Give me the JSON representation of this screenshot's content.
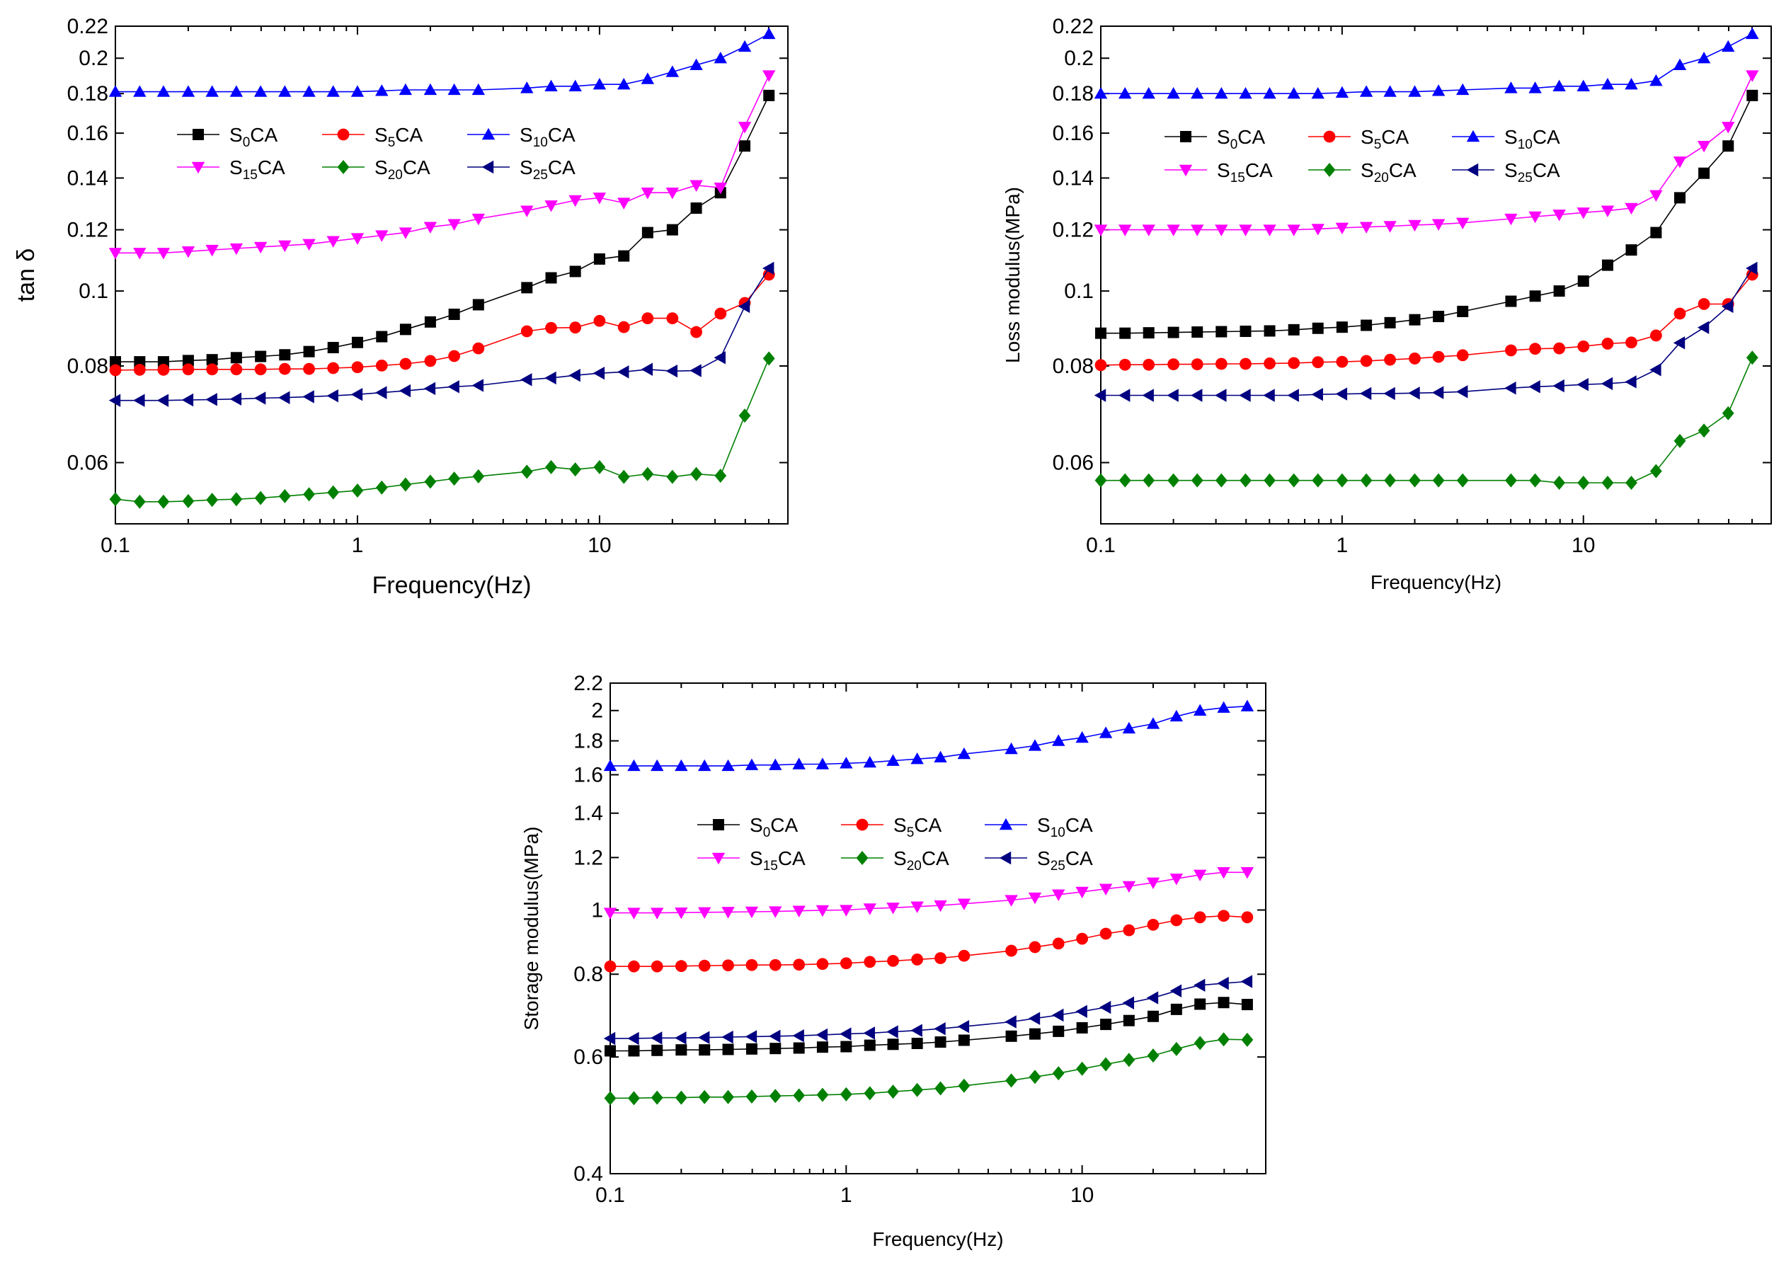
{
  "figure": {
    "series_styles": [
      {
        "name": "S0CA",
        "base": "S",
        "sub": "0",
        "suffix": "CA",
        "color": "#000000",
        "marker": "square"
      },
      {
        "name": "S5CA",
        "base": "S",
        "sub": "5",
        "suffix": "CA",
        "color": "#ff0000",
        "marker": "circle"
      },
      {
        "name": "S10CA",
        "base": "S",
        "sub": "10",
        "suffix": "CA",
        "color": "#0000ff",
        "marker": "triangle-up"
      },
      {
        "name": "S15CA",
        "base": "S",
        "sub": "15",
        "suffix": "CA",
        "color": "#ff00ff",
        "marker": "triangle-down"
      },
      {
        "name": "S20CA",
        "base": "S",
        "sub": "20",
        "suffix": "CA",
        "color": "#008000",
        "marker": "diamond"
      },
      {
        "name": "S25CA",
        "base": "S",
        "sub": "25",
        "suffix": "CA",
        "color": "#000080",
        "marker": "triangle-left"
      }
    ]
  },
  "chart_data": [
    {
      "type": "line",
      "title": "",
      "xlabel": "Frequency(Hz)",
      "ylabel": "tan δ",
      "xscale": "log",
      "yscale": "log",
      "xlim": [
        0.1,
        60
      ],
      "ylim": [
        0.05,
        0.22
      ],
      "xticks": [
        {
          "v": 0.1,
          "label": "0.1"
        },
        {
          "v": 1,
          "label": "1"
        },
        {
          "v": 10,
          "label": "10"
        }
      ],
      "yticks": [
        {
          "v": 0.06,
          "label": "0.06"
        },
        {
          "v": 0.08,
          "label": "0.08"
        },
        {
          "v": 0.1,
          "label": "0.1"
        },
        {
          "v": 0.12,
          "label": "0.12"
        },
        {
          "v": 0.14,
          "label": "0.14"
        },
        {
          "v": 0.16,
          "label": "0.16"
        },
        {
          "v": 0.18,
          "label": "0.18"
        },
        {
          "v": 0.2,
          "label": "0.2"
        },
        {
          "v": 0.22,
          "label": "0.22"
        }
      ],
      "legend": "upper-left",
      "grid": false,
      "x": [
        0.1,
        0.126,
        0.158,
        0.2,
        0.251,
        0.316,
        0.398,
        0.501,
        0.631,
        0.794,
        1.0,
        1.26,
        1.58,
        2.0,
        2.51,
        3.16,
        5.01,
        6.31,
        7.94,
        10.0,
        12.6,
        15.8,
        20.0,
        25.1,
        31.6,
        39.8,
        50.1
      ],
      "series": [
        {
          "name": "S0CA",
          "values": [
            0.081,
            0.081,
            0.081,
            0.0813,
            0.0815,
            0.082,
            0.0823,
            0.0827,
            0.0835,
            0.0845,
            0.0858,
            0.0873,
            0.0892,
            0.0912,
            0.0933,
            0.096,
            0.101,
            0.104,
            0.106,
            0.11,
            0.111,
            0.119,
            0.12,
            0.128,
            0.134,
            0.154,
            0.179
          ]
        },
        {
          "name": "S5CA",
          "values": [
            0.079,
            0.0791,
            0.0791,
            0.0792,
            0.0792,
            0.0792,
            0.0792,
            0.0793,
            0.0793,
            0.0795,
            0.0797,
            0.0801,
            0.0805,
            0.0812,
            0.0824,
            0.0843,
            0.0887,
            0.0896,
            0.0897,
            0.0915,
            0.0898,
            0.0922,
            0.0922,
            0.0885,
            0.0935,
            0.0965,
            0.105
          ]
        },
        {
          "name": "S10CA",
          "values": [
            0.181,
            0.181,
            0.181,
            0.181,
            0.181,
            0.181,
            0.181,
            0.181,
            0.181,
            0.181,
            0.181,
            0.1815,
            0.182,
            0.182,
            0.182,
            0.182,
            0.183,
            0.184,
            0.184,
            0.185,
            0.185,
            0.188,
            0.192,
            0.196,
            0.2,
            0.207,
            0.215
          ]
        },
        {
          "name": "S15CA",
          "values": [
            0.112,
            0.112,
            0.112,
            0.1125,
            0.113,
            0.1135,
            0.114,
            0.1145,
            0.115,
            0.116,
            0.117,
            0.118,
            0.119,
            0.121,
            0.122,
            0.124,
            0.127,
            0.129,
            0.131,
            0.132,
            0.13,
            0.134,
            0.134,
            0.137,
            0.136,
            0.163,
            0.19
          ]
        },
        {
          "name": "S20CA",
          "values": [
            0.0538,
            0.0534,
            0.0534,
            0.0535,
            0.0537,
            0.0538,
            0.054,
            0.0543,
            0.0546,
            0.0549,
            0.0552,
            0.0557,
            0.0562,
            0.0567,
            0.0572,
            0.0576,
            0.0584,
            0.0592,
            0.0588,
            0.0592,
            0.0575,
            0.058,
            0.0575,
            0.058,
            0.0577,
            0.069,
            0.0818
          ]
        },
        {
          "name": "S25CA",
          "values": [
            0.0722,
            0.0722,
            0.0722,
            0.0723,
            0.0724,
            0.0725,
            0.0727,
            0.0728,
            0.073,
            0.0732,
            0.0735,
            0.0739,
            0.0743,
            0.0748,
            0.0752,
            0.0755,
            0.0768,
            0.0772,
            0.0778,
            0.0783,
            0.0786,
            0.0792,
            0.0788,
            0.0789,
            0.082,
            0.0955,
            0.107
          ]
        }
      ]
    },
    {
      "type": "line",
      "title": "",
      "xlabel": "Frequency(Hz)",
      "ylabel": "Loss modulus(MPa)",
      "xscale": "log",
      "yscale": "log",
      "xlim": [
        0.1,
        60
      ],
      "ylim": [
        0.05,
        0.22
      ],
      "xticks": [
        {
          "v": 0.1,
          "label": "0.1"
        },
        {
          "v": 1,
          "label": "1"
        },
        {
          "v": 10,
          "label": "10"
        }
      ],
      "yticks": [
        {
          "v": 0.06,
          "label": "0.06"
        },
        {
          "v": 0.08,
          "label": "0.08"
        },
        {
          "v": 0.1,
          "label": "0.1"
        },
        {
          "v": 0.12,
          "label": "0.12"
        },
        {
          "v": 0.14,
          "label": "0.14"
        },
        {
          "v": 0.16,
          "label": "0.16"
        },
        {
          "v": 0.18,
          "label": "0.18"
        },
        {
          "v": 0.2,
          "label": "0.2"
        },
        {
          "v": 0.22,
          "label": "0.22"
        }
      ],
      "legend": "upper-left",
      "grid": false,
      "x": [
        0.1,
        0.126,
        0.158,
        0.2,
        0.251,
        0.316,
        0.398,
        0.501,
        0.631,
        0.794,
        1.0,
        1.26,
        1.58,
        2.0,
        2.51,
        3.16,
        5.01,
        6.31,
        7.94,
        10.0,
        12.6,
        15.8,
        20.0,
        25.1,
        31.6,
        39.8,
        50.1
      ],
      "series": [
        {
          "name": "S0CA",
          "values": [
            0.0882,
            0.0882,
            0.0883,
            0.0884,
            0.0885,
            0.0886,
            0.0887,
            0.0888,
            0.0891,
            0.0895,
            0.0898,
            0.0903,
            0.091,
            0.0918,
            0.0927,
            0.0941,
            0.097,
            0.0985,
            0.1,
            0.103,
            0.108,
            0.113,
            0.119,
            0.132,
            0.142,
            0.154,
            0.179
          ]
        },
        {
          "name": "S5CA",
          "values": [
            0.0802,
            0.0803,
            0.0803,
            0.0804,
            0.0804,
            0.0805,
            0.0805,
            0.0806,
            0.0807,
            0.0809,
            0.081,
            0.0812,
            0.0815,
            0.0818,
            0.0822,
            0.0826,
            0.0838,
            0.0842,
            0.0843,
            0.0848,
            0.0855,
            0.0858,
            0.0876,
            0.0935,
            0.0962,
            0.0962,
            0.105
          ]
        },
        {
          "name": "S10CA",
          "values": [
            0.18,
            0.18,
            0.18,
            0.18,
            0.18,
            0.18,
            0.18,
            0.18,
            0.18,
            0.18,
            0.1805,
            0.181,
            0.181,
            0.181,
            0.1815,
            0.182,
            0.183,
            0.183,
            0.184,
            0.184,
            0.185,
            0.185,
            0.187,
            0.196,
            0.2,
            0.207,
            0.215
          ]
        },
        {
          "name": "S15CA",
          "values": [
            0.12,
            0.12,
            0.12,
            0.12,
            0.12,
            0.12,
            0.12,
            0.12,
            0.12,
            0.1203,
            0.1207,
            0.121,
            0.1213,
            0.1217,
            0.122,
            0.1225,
            0.124,
            0.1248,
            0.1255,
            0.1263,
            0.127,
            0.128,
            0.133,
            0.147,
            0.154,
            0.163,
            0.19
          ]
        },
        {
          "name": "S20CA",
          "values": [
            0.0569,
            0.0569,
            0.0569,
            0.0569,
            0.0569,
            0.0569,
            0.0569,
            0.0569,
            0.0569,
            0.0569,
            0.0569,
            0.0569,
            0.0569,
            0.0569,
            0.0569,
            0.0569,
            0.0569,
            0.0569,
            0.0565,
            0.0565,
            0.0565,
            0.0565,
            0.0585,
            0.064,
            0.066,
            0.0695,
            0.082
          ]
        },
        {
          "name": "S25CA",
          "values": [
            0.0733,
            0.0733,
            0.0733,
            0.0733,
            0.0733,
            0.0733,
            0.0733,
            0.0733,
            0.0733,
            0.0735,
            0.0736,
            0.0737,
            0.0737,
            0.0738,
            0.0739,
            0.0741,
            0.0749,
            0.0752,
            0.0754,
            0.0757,
            0.0759,
            0.0763,
            0.0791,
            0.0857,
            0.0897,
            0.0955,
            0.107
          ]
        }
      ]
    },
    {
      "type": "line",
      "title": "",
      "xlabel": "Frequency(Hz)",
      "ylabel": "Storage modulus(MPa)",
      "xscale": "log",
      "yscale": "log",
      "xlim": [
        0.1,
        60
      ],
      "ylim": [
        0.4,
        2.2
      ],
      "xticks": [
        {
          "v": 0.1,
          "label": "0.1"
        },
        {
          "v": 1,
          "label": "1"
        },
        {
          "v": 10,
          "label": "10"
        }
      ],
      "yticks": [
        {
          "v": 0.4,
          "label": "0.4"
        },
        {
          "v": 0.6,
          "label": "0.6"
        },
        {
          "v": 0.8,
          "label": "0.8"
        },
        {
          "v": 1.0,
          "label": "1"
        },
        {
          "v": 1.2,
          "label": "1.2"
        },
        {
          "v": 1.4,
          "label": "1.4"
        },
        {
          "v": 1.6,
          "label": "1.6"
        },
        {
          "v": 1.8,
          "label": "1.8"
        },
        {
          "v": 2.0,
          "label": "2"
        },
        {
          "v": 2.2,
          "label": "2.2"
        }
      ],
      "legend": "upper-left",
      "grid": false,
      "x": [
        0.1,
        0.126,
        0.158,
        0.2,
        0.251,
        0.316,
        0.398,
        0.501,
        0.631,
        0.794,
        1.0,
        1.26,
        1.58,
        2.0,
        2.51,
        3.16,
        5.01,
        6.31,
        7.94,
        10.0,
        12.6,
        15.8,
        20.0,
        25.1,
        31.6,
        39.8,
        50.1
      ],
      "series": [
        {
          "name": "S0CA",
          "values": [
            0.613,
            0.613,
            0.614,
            0.615,
            0.615,
            0.616,
            0.617,
            0.618,
            0.619,
            0.621,
            0.622,
            0.625,
            0.627,
            0.629,
            0.632,
            0.636,
            0.645,
            0.65,
            0.656,
            0.664,
            0.672,
            0.681,
            0.691,
            0.708,
            0.721,
            0.725,
            0.72
          ]
        },
        {
          "name": "S5CA",
          "values": [
            0.822,
            0.822,
            0.822,
            0.823,
            0.824,
            0.825,
            0.826,
            0.826,
            0.827,
            0.829,
            0.831,
            0.835,
            0.838,
            0.842,
            0.846,
            0.853,
            0.868,
            0.879,
            0.89,
            0.905,
            0.921,
            0.932,
            0.95,
            0.965,
            0.975,
            0.98,
            0.975
          ]
        },
        {
          "name": "S10CA",
          "values": [
            1.65,
            1.65,
            1.65,
            1.65,
            1.65,
            1.65,
            1.655,
            1.655,
            1.66,
            1.66,
            1.665,
            1.67,
            1.68,
            1.69,
            1.7,
            1.72,
            1.75,
            1.77,
            1.8,
            1.82,
            1.85,
            1.88,
            1.91,
            1.96,
            2.0,
            2.02,
            2.03
          ]
        },
        {
          "name": "S15CA",
          "values": [
            0.99,
            0.99,
            0.99,
            0.991,
            0.992,
            0.993,
            0.994,
            0.995,
            0.997,
            0.999,
            1.0,
            1.005,
            1.008,
            1.012,
            1.016,
            1.022,
            1.035,
            1.044,
            1.055,
            1.065,
            1.076,
            1.086,
            1.1,
            1.115,
            1.13,
            1.14,
            1.14
          ]
        },
        {
          "name": "S20CA",
          "values": [
            0.52,
            0.52,
            0.521,
            0.521,
            0.522,
            0.522,
            0.523,
            0.524,
            0.525,
            0.526,
            0.527,
            0.529,
            0.532,
            0.535,
            0.538,
            0.543,
            0.553,
            0.56,
            0.567,
            0.576,
            0.585,
            0.594,
            0.603,
            0.617,
            0.63,
            0.638,
            0.637
          ]
        },
        {
          "name": "S25CA",
          "values": [
            0.64,
            0.64,
            0.641,
            0.641,
            0.642,
            0.643,
            0.644,
            0.645,
            0.646,
            0.648,
            0.65,
            0.652,
            0.655,
            0.658,
            0.662,
            0.667,
            0.678,
            0.686,
            0.694,
            0.703,
            0.713,
            0.724,
            0.737,
            0.755,
            0.77,
            0.775,
            0.78
          ]
        }
      ]
    }
  ]
}
